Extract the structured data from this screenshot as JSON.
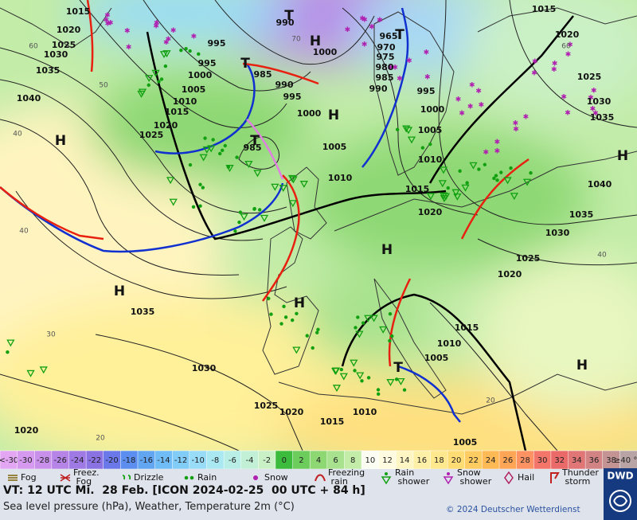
{
  "isobar_labels": [
    "1015",
    "1020",
    "1025",
    "1030",
    "1035",
    "1040",
    "990",
    "995",
    "995",
    "1000",
    "1005",
    "1010",
    "1015",
    "1020",
    "1025",
    "985",
    "990",
    "995",
    "1000",
    "985",
    "1000",
    "965",
    "970",
    "975",
    "980",
    "985",
    "990",
    "995",
    "1000",
    "1005",
    "1010",
    "1015",
    "1020",
    "1010",
    "1005",
    "1015",
    "1020",
    "1025",
    "1030",
    "1035",
    "1040",
    "1035",
    "1030",
    "1025",
    "1020",
    "1035",
    "1030",
    "1025",
    "1020",
    "1015",
    "1010",
    "1005",
    "1010",
    "1015",
    "1005",
    "1020"
  ],
  "isotherm_labels": [
    "60",
    "50",
    "40",
    "40",
    "30",
    "20",
    "60",
    "40",
    "20",
    "70"
  ],
  "pressure_centers": [
    "H",
    "H",
    "H",
    "H",
    "H",
    "H",
    "H",
    "H",
    "T",
    "T",
    "T",
    "T",
    "T"
  ],
  "temperature_scale": [
    {
      "label": "<-30",
      "color": "#e2a6f2"
    },
    {
      "label": "-30",
      "color": "#d59aef"
    },
    {
      "label": "-28",
      "color": "#c890ea"
    },
    {
      "label": "-26",
      "color": "#b684e6"
    },
    {
      "label": "-24",
      "color": "#a07ae4"
    },
    {
      "label": "-22",
      "color": "#8a72e2"
    },
    {
      "label": "-20",
      "color": "#6a78ea"
    },
    {
      "label": "-18",
      "color": "#5c8ef0"
    },
    {
      "label": "-16",
      "color": "#62a6f2"
    },
    {
      "label": "-14",
      "color": "#70bcf6"
    },
    {
      "label": "-12",
      "color": "#82ccf8"
    },
    {
      "label": "-10",
      "color": "#98dcf8"
    },
    {
      "label": "-8",
      "color": "#aae8f2"
    },
    {
      "label": "-6",
      "color": "#b8eee6"
    },
    {
      "label": "-4",
      "color": "#c2f0d6"
    },
    {
      "label": "-2",
      "color": "#caf0c6"
    },
    {
      "label": "0",
      "color": "#3cbc3c"
    },
    {
      "label": "2",
      "color": "#6ccc5c"
    },
    {
      "label": "4",
      "color": "#8ed874"
    },
    {
      "label": "6",
      "color": "#a8e28e"
    },
    {
      "label": "8",
      "color": "#c2eca8"
    },
    {
      "label": "10",
      "color": "#fbfdf2"
    },
    {
      "label": "12",
      "color": "#fffbe0"
    },
    {
      "label": "14",
      "color": "#fff6c4"
    },
    {
      "label": "16",
      "color": "#fff0a8"
    },
    {
      "label": "18",
      "color": "#ffe88e"
    },
    {
      "label": "20",
      "color": "#ffdc74"
    },
    {
      "label": "22",
      "color": "#ffcc62"
    },
    {
      "label": "24",
      "color": "#ffba56"
    },
    {
      "label": "26",
      "color": "#ffa656"
    },
    {
      "label": "28",
      "color": "#ff9262"
    },
    {
      "label": "30",
      "color": "#f4766a"
    },
    {
      "label": "32",
      "color": "#ea6a6a"
    },
    {
      "label": "34",
      "color": "#e07676"
    },
    {
      "label": "36",
      "color": "#d28484"
    },
    {
      "label": "38",
      "color": "#c49494"
    },
    {
      "label": "≥40 °C",
      "color": "#b8a4a4"
    }
  ],
  "weather_legend": [
    "Fog",
    "Freez. Fog",
    "Drizzle",
    "Rain",
    "Snow",
    "Freezing rain",
    "Rain shower",
    "Snow shower",
    "Hail",
    "Thunder storm"
  ],
  "footer": {
    "valid_time": "VT: 12 UTC Mi.  28 Feb. [ICON 2024-02-25  00 UTC + 84 h]",
    "description": "Sea level pressure (hPa), Weather, Temperature 2m (°C)",
    "copyright": "© 2024 Deutscher Wetterdienst",
    "logo": "DWD"
  }
}
